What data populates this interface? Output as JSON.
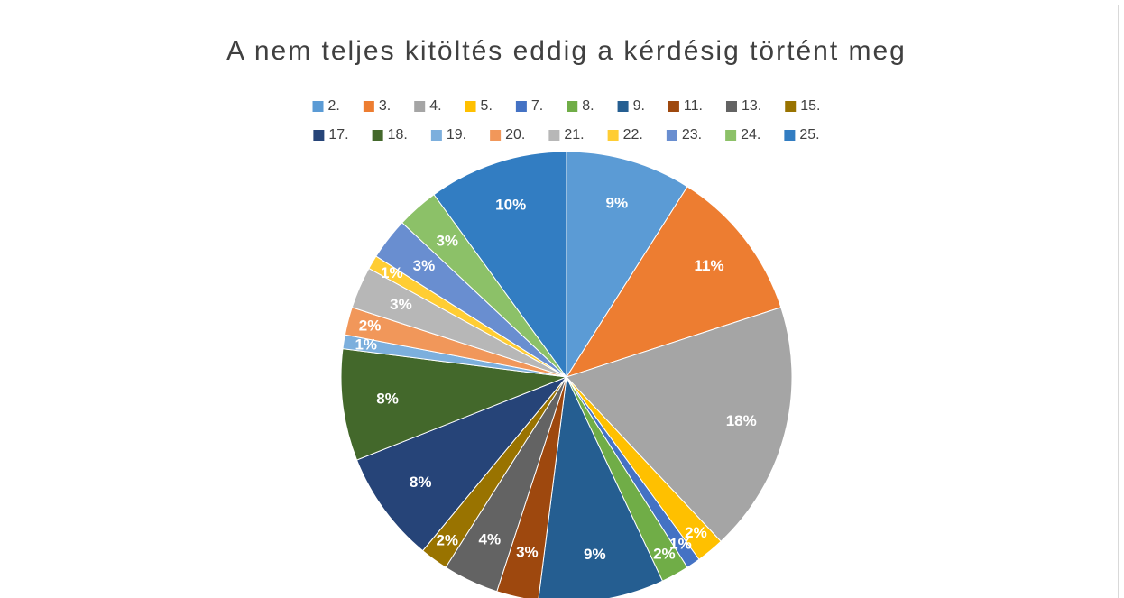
{
  "chart_data": {
    "type": "pie",
    "title": "A nem teljes kitöltés eddig a kérdésig történt meg",
    "categories": [
      "2.",
      "3.",
      "4.",
      "5.",
      "7.",
      "8.",
      "9.",
      "11.",
      "13.",
      "15.",
      "17.",
      "18.",
      "19.",
      "20.",
      "21.",
      "22.",
      "23.",
      "24.",
      "25."
    ],
    "values": [
      9,
      11,
      18,
      2,
      1,
      2,
      9,
      3,
      4,
      2,
      8,
      8,
      1,
      2,
      3,
      1,
      3,
      3,
      10
    ],
    "value_labels": [
      "9%",
      "11%",
      "18%",
      "2%",
      "1%",
      "2%",
      "9%",
      "3%",
      "4%",
      "2%",
      "8%",
      "8%",
      "1%",
      "2%",
      "3%",
      "1%",
      "3%",
      "3%",
      "10%"
    ],
    "colors": [
      "#5b9bd5",
      "#ed7d31",
      "#a5a5a5",
      "#ffc000",
      "#4472c4",
      "#70ad47",
      "#255e91",
      "#9e480e",
      "#636363",
      "#997300",
      "#264478",
      "#43682b",
      "#7cafdd",
      "#f1975a",
      "#b7b7b7",
      "#ffcd33",
      "#698ed0",
      "#8cc168",
      "#327dc2"
    ],
    "legend": "top"
  }
}
